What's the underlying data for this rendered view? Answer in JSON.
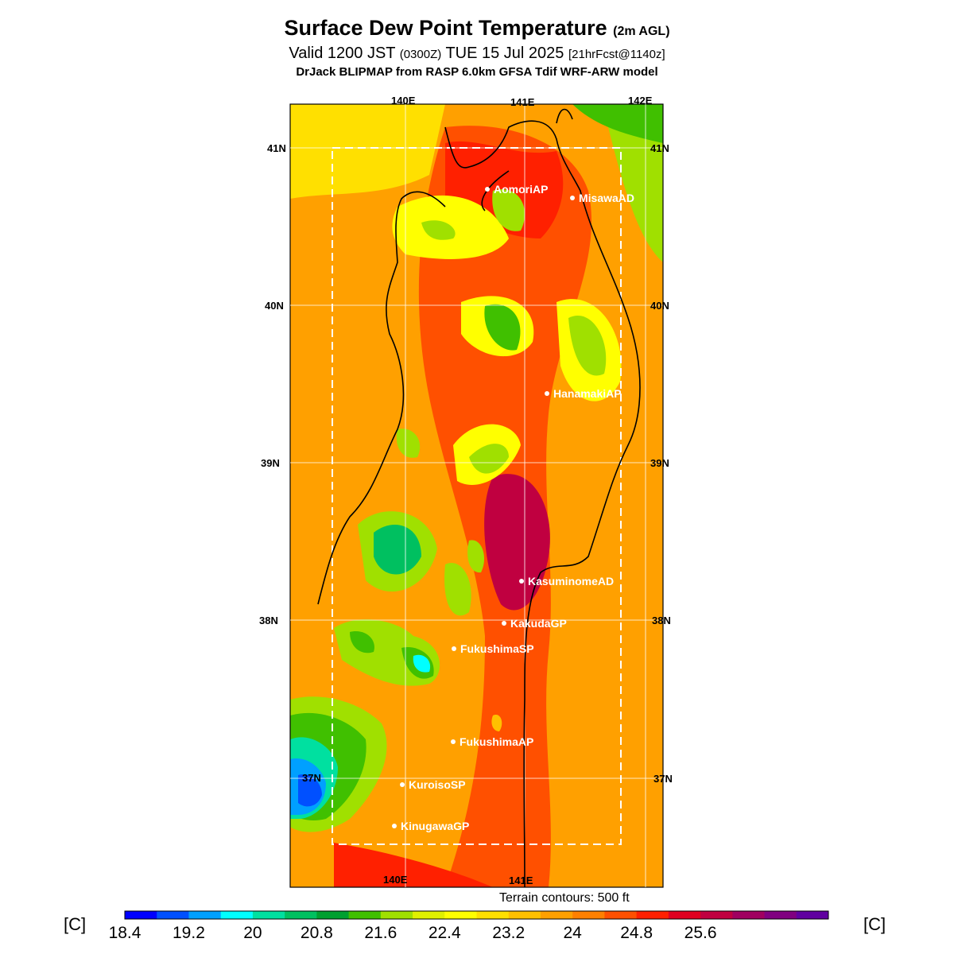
{
  "header": {
    "title": "Surface Dew Point Temperature",
    "title_qualifier": "(2m AGL)",
    "valid_prefix": "Valid 1200 JST",
    "valid_utc": "(0300Z)",
    "valid_date": "TUE 15 Jul 2025",
    "forecast_info": "[21hrFcst@1140z]",
    "model_line": "DrJack BLIPMAP from RASP 6.0km GFSA Tdif WRF-ARW model"
  },
  "map": {
    "lon_labels_top": [
      "140E",
      "141E",
      "142E"
    ],
    "lon_labels_bottom": [
      "140E",
      "141E"
    ],
    "lat_labels": [
      "41N",
      "40N",
      "39N",
      "38N",
      "37N"
    ],
    "stations": [
      {
        "name": "AomoriAP"
      },
      {
        "name": "MisawaAD"
      },
      {
        "name": "HanamakiAP"
      },
      {
        "name": "KasuminomeAD"
      },
      {
        "name": "KakudaGP"
      },
      {
        "name": "FukushimaSP"
      },
      {
        "name": "FukushimaAP"
      },
      {
        "name": "KuroisoSP"
      },
      {
        "name": "KinugawaGP"
      }
    ],
    "terrain_note": "Terrain contours: 500 ft"
  },
  "colorbar": {
    "unit_left": "[C]",
    "unit_right": "[C]",
    "tick_labels": [
      "18.4",
      "19.2",
      "20",
      "20.8",
      "21.6",
      "22.4",
      "23.2",
      "24",
      "24.8",
      "25.6"
    ],
    "colors": [
      "#0000ff",
      "#0050ff",
      "#00a0ff",
      "#00ffff",
      "#00e0a0",
      "#00c060",
      "#00a030",
      "#40c000",
      "#a0e000",
      "#e0f000",
      "#ffff00",
      "#ffe000",
      "#ffc000",
      "#ffa000",
      "#ff8000",
      "#ff5000",
      "#ff2000",
      "#e00020",
      "#c00040",
      "#a00060",
      "#800080",
      "#6000a0"
    ]
  }
}
